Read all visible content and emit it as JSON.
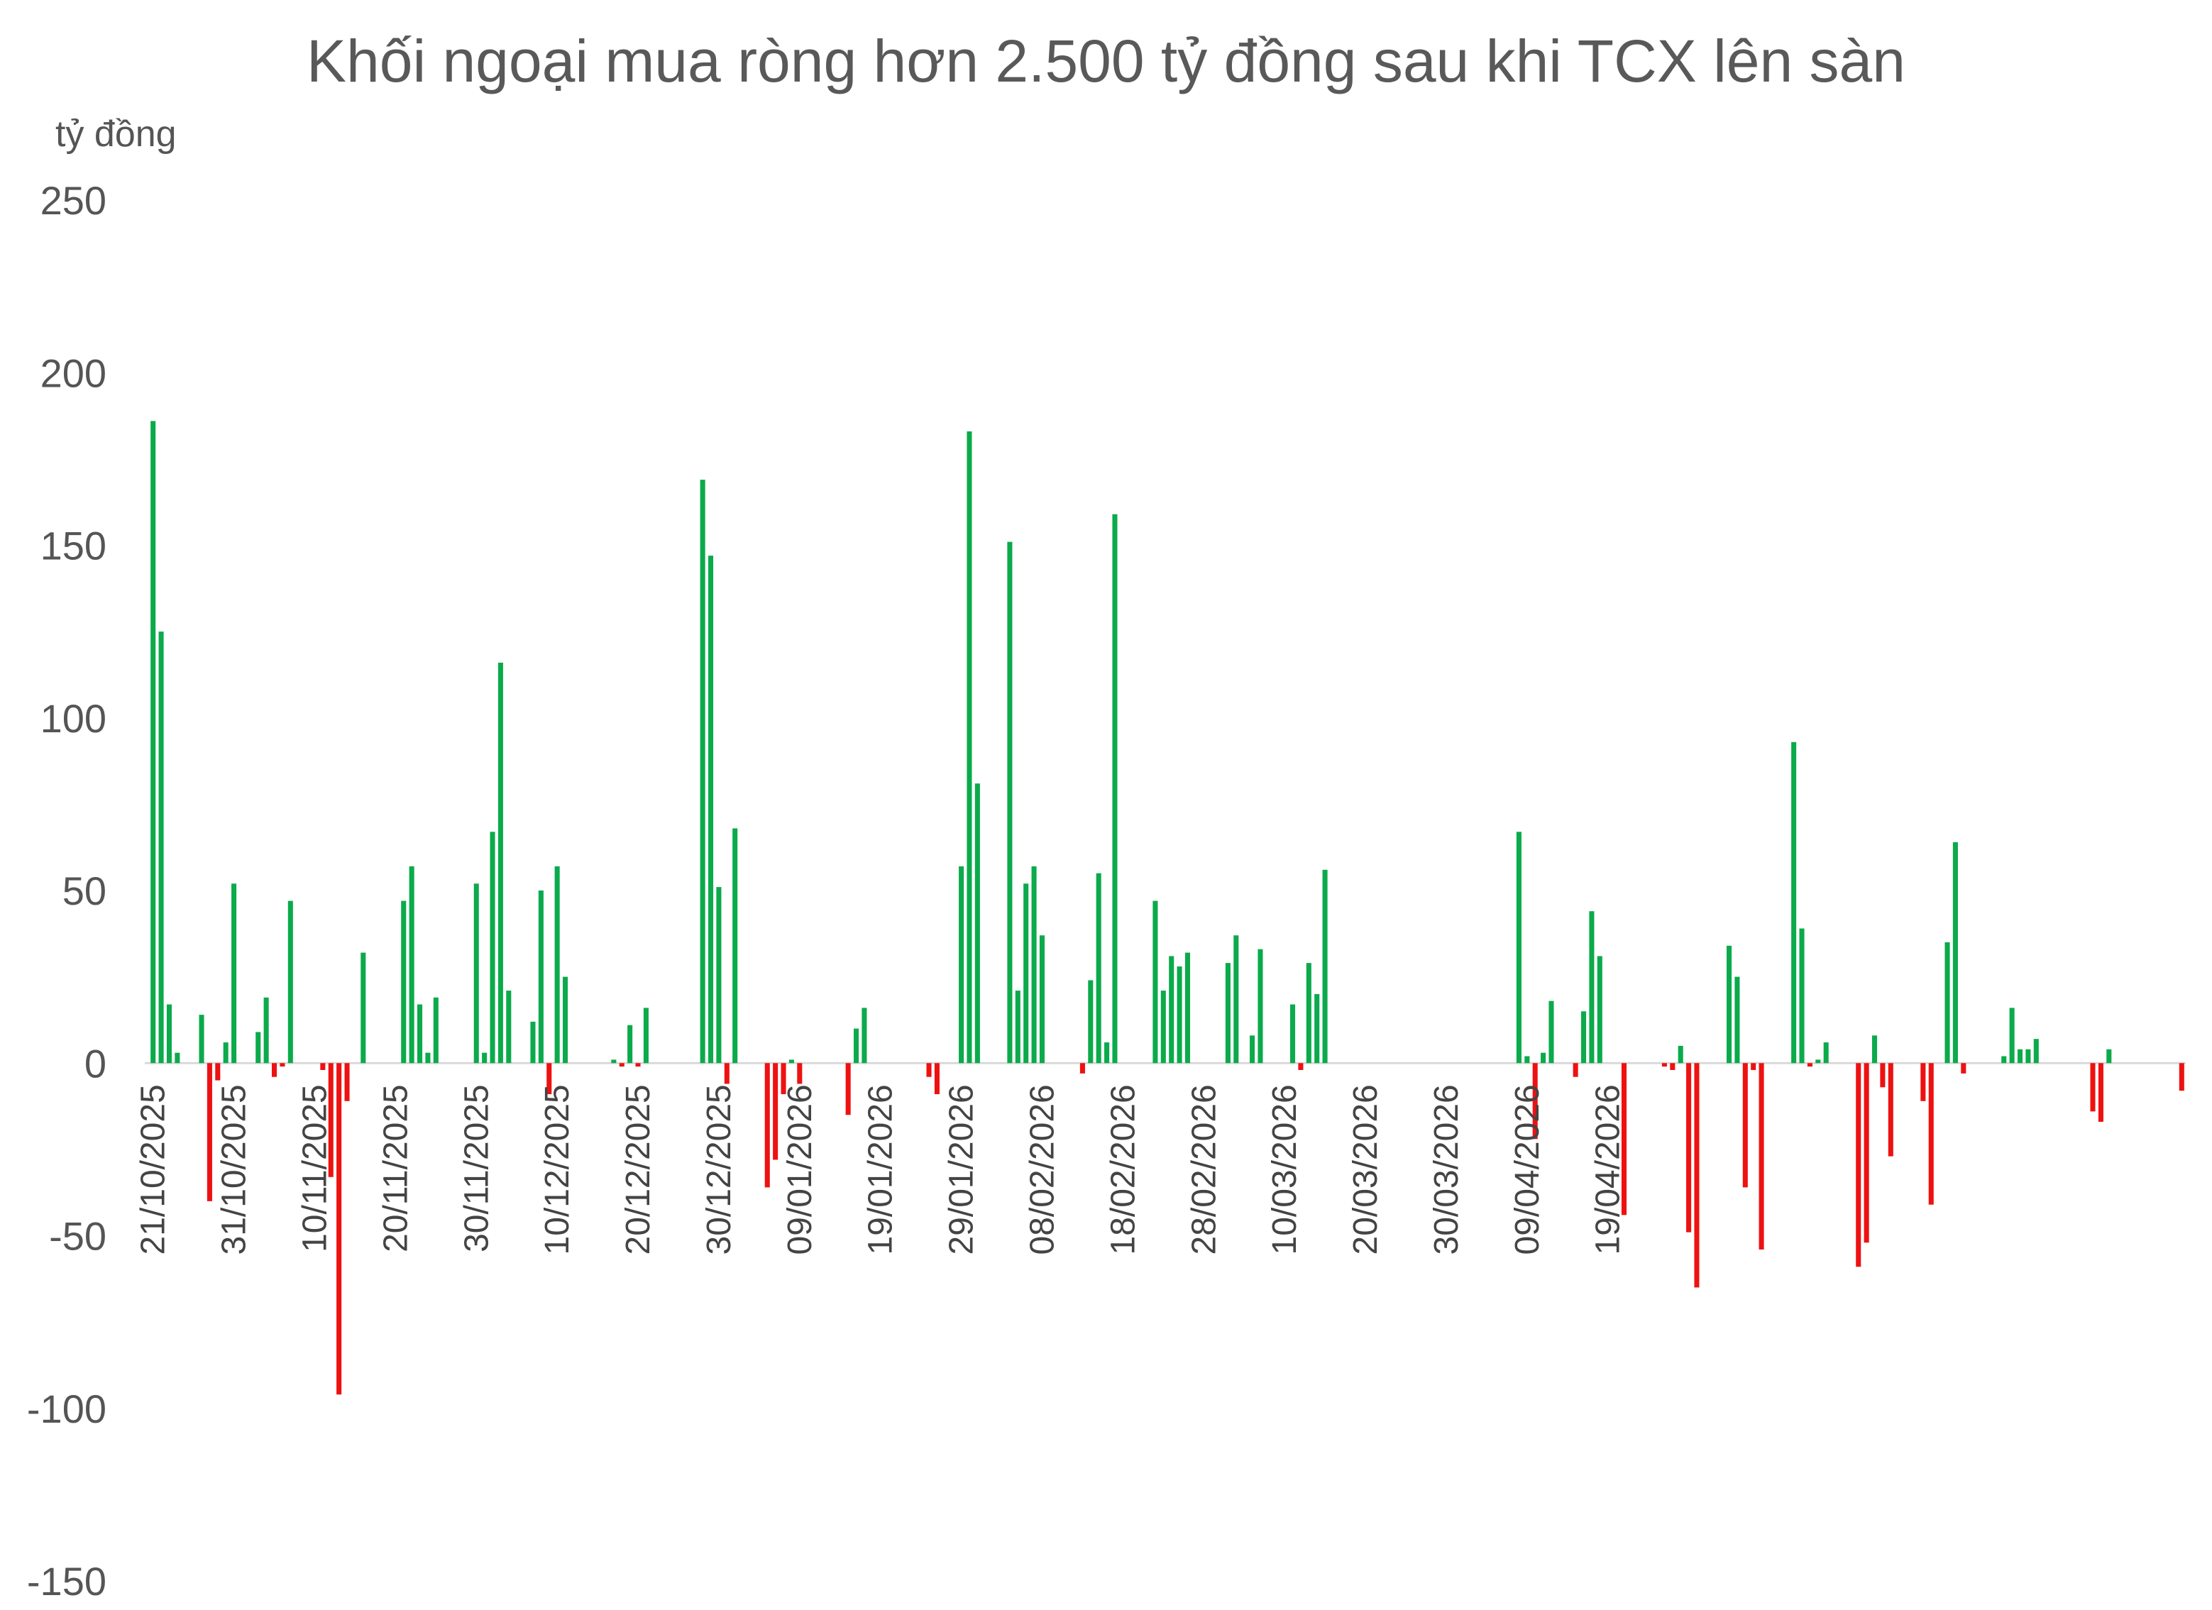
{
  "chart_data": {
    "type": "bar",
    "title": "Khối ngoại mua ròng hơn 2.500 tỷ đồng sau khi TCX lên sàn",
    "ylabel": "tỷ đồng",
    "xlabel": "",
    "ylim": [
      -150,
      250
    ],
    "yticks": [
      "250",
      "200",
      "150",
      "100",
      "50",
      "0",
      "-50",
      "-100",
      "-150"
    ],
    "ytick_values": [
      250,
      200,
      150,
      100,
      50,
      0,
      -50,
      -100,
      -150
    ],
    "grid": false,
    "legend": "none",
    "x_start": "2025-10-21",
    "xtick_labels": [
      "21/10/2025",
      "31/10/2025",
      "10/11/2025",
      "20/11/2025",
      "30/11/2025",
      "10/12/2025",
      "20/12/2025",
      "30/12/2025",
      "09/01/2026",
      "19/01/2026",
      "29/01/2026",
      "08/02/2026",
      "18/02/2026",
      "28/02/2026",
      "10/03/2026",
      "20/03/2026",
      "30/03/2026",
      "09/04/2026",
      "19/04/2026"
    ],
    "positive_color": "#0BAA4B",
    "negative_color": "#EE1111",
    "values": [
      186,
      125,
      17,
      3,
      0,
      0,
      14,
      -40,
      -5,
      6,
      52,
      0,
      0,
      9,
      19,
      -4,
      -1,
      47,
      0,
      0,
      0,
      -2,
      -33,
      -96,
      -11,
      0,
      32,
      0,
      0,
      0,
      0,
      47,
      57,
      17,
      3,
      19,
      0,
      0,
      0,
      0,
      52,
      3,
      67,
      116,
      21,
      0,
      0,
      12,
      50,
      -9,
      57,
      25,
      0,
      0,
      0,
      0,
      0,
      1,
      -1,
      11,
      -1,
      16,
      0,
      0,
      0,
      0,
      0,
      0,
      169,
      147,
      51,
      -6,
      68,
      0,
      0,
      0,
      -36,
      -28,
      -9,
      1,
      -6,
      0,
      0,
      0,
      0,
      0,
      -15,
      10,
      16,
      0,
      0,
      0,
      0,
      0,
      0,
      0,
      -4,
      -9,
      0,
      0,
      57,
      183,
      81,
      0,
      0,
      0,
      151,
      21,
      52,
      57,
      37,
      0,
      0,
      0,
      0,
      -3,
      24,
      55,
      6,
      159,
      0,
      0,
      0,
      0,
      47,
      21,
      31,
      28,
      32,
      0,
      0,
      0,
      0,
      29,
      37,
      0,
      8,
      33,
      0,
      0,
      0,
      17,
      -2,
      29,
      20,
      56,
      0,
      0,
      0,
      0,
      0,
      0,
      0,
      0,
      0,
      0,
      0,
      0,
      0,
      0,
      0,
      0,
      0,
      0,
      0,
      0,
      0,
      0,
      0,
      67,
      2,
      -22,
      3,
      18,
      0,
      0,
      -4,
      15,
      44,
      31,
      0,
      0,
      -44,
      0,
      0,
      0,
      0,
      -1,
      -2,
      5,
      -49,
      -65,
      0,
      0,
      0,
      34,
      25,
      -36,
      -2,
      -54,
      0,
      0,
      0,
      93,
      39,
      -1,
      1,
      6,
      0,
      0,
      0,
      -59,
      -52,
      8,
      -7,
      -27,
      0,
      0,
      0,
      -11,
      -41,
      0,
      35,
      64,
      -3,
      0,
      0,
      0,
      0,
      2,
      16,
      4,
      4,
      7,
      0,
      0,
      0,
      0,
      0,
      0,
      -14,
      -17,
      4,
      0,
      0,
      0,
      0,
      0,
      0,
      0,
      0,
      -8
    ]
  }
}
